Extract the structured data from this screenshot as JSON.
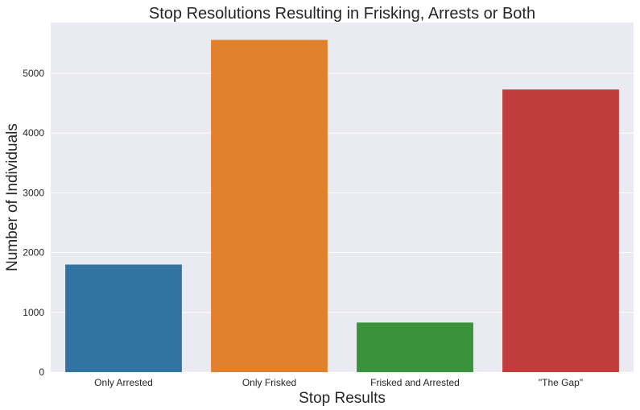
{
  "chart_data": {
    "type": "bar",
    "title": "Stop Resolutions Resulting in Frisking, Arrests or Both",
    "xlabel": "Stop Results",
    "ylabel": "Number of Individuals",
    "categories": [
      "Only Arrested",
      "Only Frisked",
      "Frisked and Arrested",
      "\"The Gap\""
    ],
    "values": [
      1800,
      5560,
      830,
      4730
    ],
    "colors": [
      "#3274a1",
      "#e1812c",
      "#3a923a",
      "#c03d3e"
    ],
    "ylim": [
      0,
      5850
    ],
    "yticks": [
      0,
      1000,
      2000,
      3000,
      4000,
      5000
    ],
    "ytick_labels": [
      "0",
      "1000",
      "2000",
      "3000",
      "4000",
      "5000"
    ],
    "grid": true,
    "background": "#eaeaf2"
  }
}
